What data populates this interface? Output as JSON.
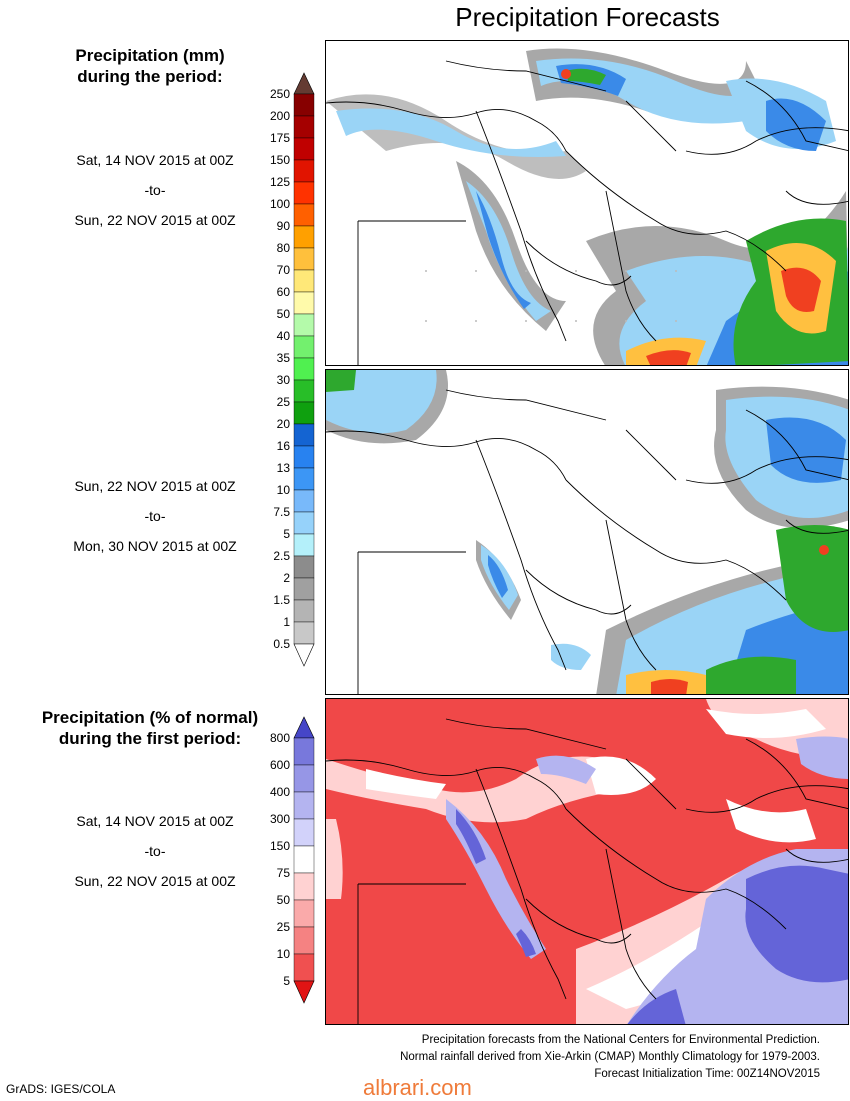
{
  "title": "Precipitation Forecasts",
  "precip_heading": [
    "Precipitation (mm)",
    "during the period:"
  ],
  "period1": [
    "Sat, 14 NOV 2015 at 00Z",
    "-to-",
    "Sun, 22 NOV 2015 at 00Z"
  ],
  "period2": [
    "Sun, 22 NOV 2015 at 00Z",
    "-to-",
    "Mon, 30 NOV 2015 at 00Z"
  ],
  "anomaly_heading": [
    "Precipitation (% of normal)",
    "during the first period:"
  ],
  "period3": [
    "Sat, 14 NOV 2015 at 00Z",
    "-to-",
    "Sun, 22 NOV 2015 at 00Z"
  ],
  "footer": [
    "Precipitation forecasts from the National Centers for Environmental Prediction.",
    "Normal rainfall derived from Xie-Arkin (CMAP) Monthly Climatology for 1979-2003.",
    "Forecast Initialization Time: 00Z14NOV2015"
  ],
  "credit": "GrADS: IGES/COLA",
  "watermark": "albrari.com",
  "chart_data": [
    {
      "type": "heatmap",
      "colorbar": {
        "labels": [
          "0.5",
          "1",
          "1.5",
          "2",
          "2.5",
          "5",
          "7.5",
          "10",
          "13",
          "16",
          "20",
          "25",
          "30",
          "35",
          "40",
          "50",
          "60",
          "70",
          "80",
          "90",
          "100",
          "125",
          "150",
          "175",
          "200",
          "250"
        ],
        "colors": [
          "#ffffff",
          "#c8c8c8",
          "#b4b4b4",
          "#a0a0a0",
          "#8c8c8c",
          "#b4f0fa",
          "#96d2fa",
          "#78b9fa",
          "#3c96f5",
          "#2882f0",
          "#1464d2",
          "#0fa00f",
          "#28be28",
          "#50f050",
          "#73f06e",
          "#b4faaa",
          "#fffaaa",
          "#ffe878",
          "#ffc03c",
          "#ffa000",
          "#ff6000",
          "#ff3200",
          "#e11400",
          "#c00000",
          "#a50000",
          "#870000",
          "#643b32"
        ]
      },
      "panels": [
        {
          "period": "Sat, 14 NOV 2015 at 00Z -to- Sun, 22 NOV 2015 at 00Z"
        },
        {
          "period": "Sun, 22 NOV 2015 at 00Z -to- Mon, 30 NOV 2015 at 00Z"
        }
      ]
    },
    {
      "type": "heatmap",
      "colorbar": {
        "labels": [
          "5",
          "10",
          "25",
          "50",
          "75",
          "150",
          "300",
          "400",
          "600",
          "800"
        ],
        "colors": [
          "#e11414",
          "#f05050",
          "#f58282",
          "#faaaaa",
          "#ffd2d2",
          "#ffffff",
          "#d2d2fa",
          "#b4b4f0",
          "#9696e6",
          "#7878dc",
          "#4646c8"
        ]
      },
      "panels": [
        {
          "period": "Sat, 14 NOV 2015 at 00Z -to- Sun, 22 NOV 2015 at 00Z"
        }
      ]
    }
  ]
}
